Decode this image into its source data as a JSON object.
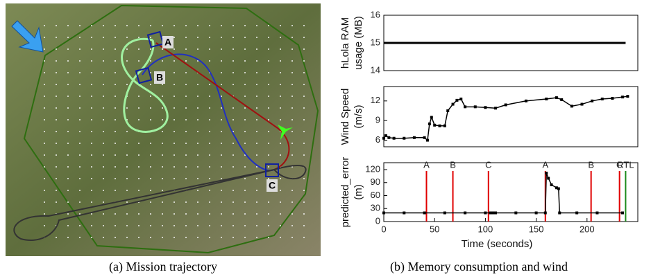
{
  "map": {
    "labels": [
      "A",
      "B",
      "C"
    ]
  },
  "captions": [
    "(a) Mission trajectory",
    "(b) Memory consumption and wind"
  ],
  "chart_data": [
    {
      "type": "line",
      "ylabel": [
        "hLola RAM",
        "usage (MB)"
      ],
      "xlim": [
        0,
        250
      ],
      "ylim": [
        14,
        16
      ],
      "yticks": [
        14,
        15,
        16
      ],
      "series": [
        {
          "color": "#000000",
          "x": [
            0,
            238
          ],
          "values": [
            15,
            15
          ]
        }
      ]
    },
    {
      "type": "line",
      "ylabel": [
        "Wind Speed",
        "(m/s)"
      ],
      "xlim": [
        0,
        250
      ],
      "ylim": [
        5,
        14.2
      ],
      "yticks": [
        6,
        9,
        12
      ],
      "marker": "square",
      "series": [
        {
          "color": "#000000",
          "x": [
            0,
            2,
            5,
            10,
            20,
            30,
            40,
            43,
            45,
            47,
            50,
            55,
            60,
            63,
            68,
            72,
            76,
            80,
            90,
            100,
            110,
            120,
            140,
            160,
            170,
            175,
            185,
            195,
            205,
            215,
            225,
            235,
            240
          ],
          "values": [
            6.3,
            6.7,
            6.4,
            6.3,
            6.3,
            6.4,
            6.4,
            6.0,
            8.5,
            9.5,
            8.3,
            8.2,
            8.2,
            10.5,
            11.5,
            12.1,
            12.3,
            11.1,
            11.1,
            11.0,
            10.9,
            11.4,
            12.0,
            12.3,
            12.5,
            12.2,
            11.2,
            11.5,
            12.0,
            12.3,
            12.4,
            12.6,
            12.7
          ]
        }
      ]
    },
    {
      "type": "line",
      "ylabel": [
        "predicted_error",
        "(m)"
      ],
      "xlabel": "Time (seconds)",
      "xlim": [
        0,
        250
      ],
      "ylim": [
        0,
        136
      ],
      "xticks": [
        0,
        50,
        100,
        150,
        200
      ],
      "yticks": [
        0,
        30,
        60,
        90,
        120
      ],
      "marker": "square",
      "series": [
        {
          "color": "#000000",
          "x": [
            0,
            20,
            40,
            60,
            80,
            100,
            105,
            107,
            107.5,
            110,
            130,
            150,
            159,
            160,
            162,
            165,
            170,
            172,
            173,
            190,
            210,
            235
          ],
          "values": [
            20,
            20,
            20,
            20,
            20,
            20,
            20,
            null,
            20,
            20,
            20,
            20,
            20,
            112,
            100,
            85,
            78,
            76,
            20,
            20,
            20,
            20
          ]
        }
      ],
      "events": [
        {
          "label": "A",
          "x": 42,
          "color": "#e00000"
        },
        {
          "label": "B",
          "x": 68,
          "color": "#e00000"
        },
        {
          "label": "C",
          "x": 103,
          "color": "#e00000"
        },
        {
          "label": "A",
          "x": 159,
          "color": "#e00000"
        },
        {
          "label": "B",
          "x": 204,
          "color": "#e00000"
        },
        {
          "label": "C",
          "x": 232,
          "color": "#e00000"
        },
        {
          "label": "RTL",
          "x": 238,
          "color": "#1a8a1a"
        }
      ]
    }
  ]
}
